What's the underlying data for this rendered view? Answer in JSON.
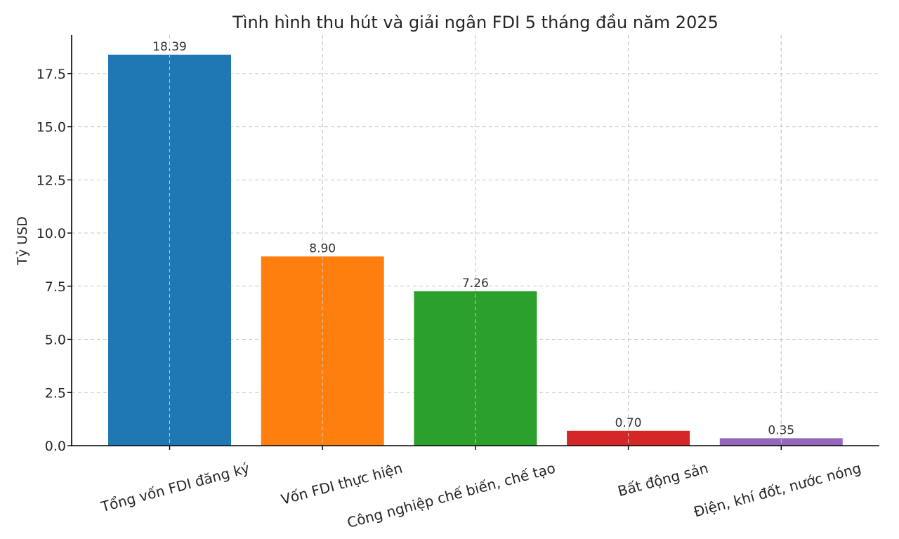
{
  "chart_data": {
    "type": "bar",
    "title": "Tình hình thu hút và giải ngân FDI 5 tháng đầu năm 2025",
    "xlabel": "",
    "ylabel": "Tỷ USD",
    "ylim": [
      0,
      19.31
    ],
    "yticks": [
      "0.0",
      "2.5",
      "5.0",
      "7.5",
      "10.0",
      "12.5",
      "15.0",
      "17.5"
    ],
    "ytick_values": [
      0,
      2.5,
      5,
      7.5,
      10,
      12.5,
      15,
      17.5
    ],
    "grid": true,
    "categories": [
      "Tổng vốn FDI đăng ký",
      "Vốn FDI thực hiện",
      "Công nghiệp chế biến, chế tạo",
      "Bất động sản",
      "Điện, khí đốt, nước nóng"
    ],
    "values": [
      18.39,
      8.9,
      7.26,
      0.7,
      0.35
    ],
    "value_labels": [
      "18.39",
      "8.90",
      "7.26",
      "0.70",
      "0.35"
    ],
    "colors": [
      "#1f77b4",
      "#ff7f0e",
      "#2ca02c",
      "#d62728",
      "#9467bd"
    ]
  }
}
